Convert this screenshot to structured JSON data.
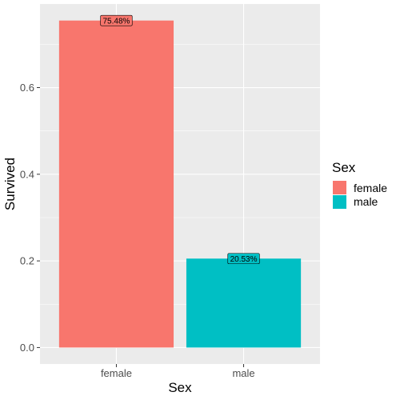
{
  "chart_data": {
    "type": "bar",
    "categories": [
      "female",
      "male"
    ],
    "values": [
      0.7548,
      0.2053
    ],
    "data_labels": [
      "75.48%",
      "20.53%"
    ],
    "xlabel": "Sex",
    "ylabel": "Survived",
    "ylim": [
      -0.038,
      0.793
    ],
    "y_ticks": [
      0.0,
      0.2,
      0.4,
      0.6
    ],
    "y_tick_labels": [
      "0.0",
      "0.2",
      "0.4",
      "0.6"
    ],
    "grid": true,
    "legend": {
      "title": "Sex",
      "position": "right",
      "entries": [
        "female",
        "male"
      ]
    },
    "colors": {
      "female": "#F8766D",
      "male": "#00BFC4",
      "panel": "#EBEBEB",
      "grid": "#FFFFFF"
    }
  }
}
